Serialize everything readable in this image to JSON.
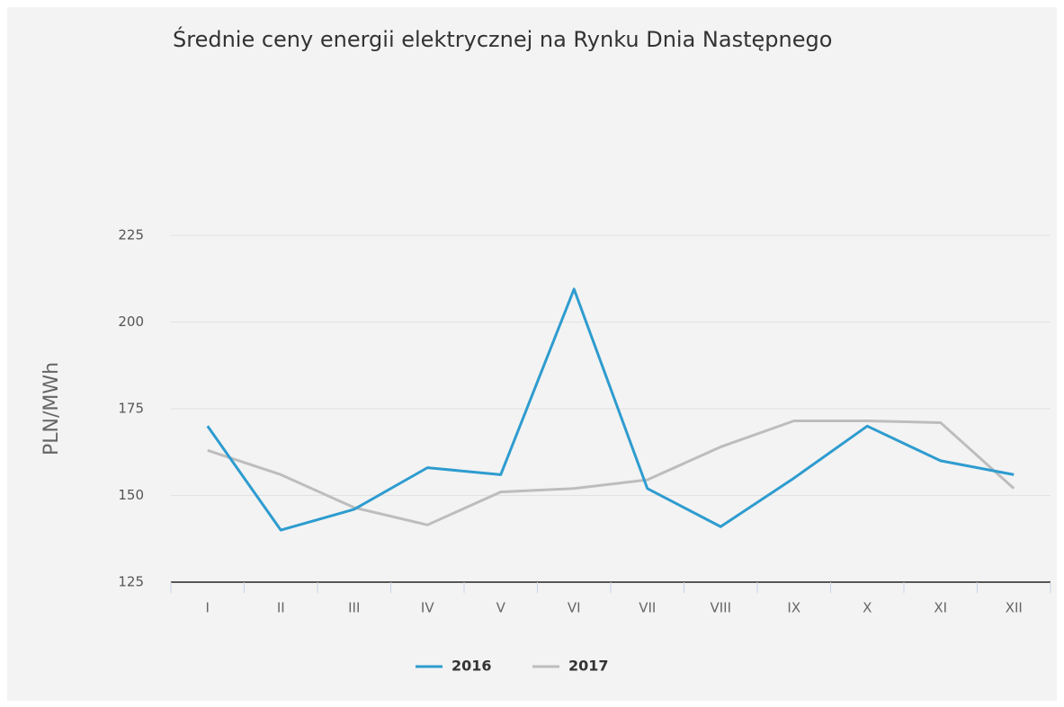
{
  "chart_data": {
    "type": "line",
    "title": "Średnie ceny energii elektrycznej na Rynku Dnia Następnego",
    "y_label": "PLN/MWh",
    "categories": [
      "I",
      "II",
      "III",
      "IV",
      "V",
      "VI",
      "VII",
      "VIII",
      "IX",
      "X",
      "XI",
      "XII"
    ],
    "series": [
      {
        "name": "2016",
        "color": "#2e9ccf",
        "values": [
          170,
          140,
          146,
          158,
          156,
          209.5,
          152,
          141,
          155,
          170,
          160,
          156
        ]
      },
      {
        "name": "2017",
        "color": "#bdbdbd",
        "values": [
          163,
          156,
          146.5,
          141.5,
          151,
          152,
          154.5,
          164,
          171.5,
          171.5,
          171,
          152
        ]
      }
    ],
    "ylim": [
      125,
      225
    ],
    "yticks": [
      125,
      150,
      175,
      200,
      225
    ],
    "grid": true,
    "legend": "bottom"
  }
}
